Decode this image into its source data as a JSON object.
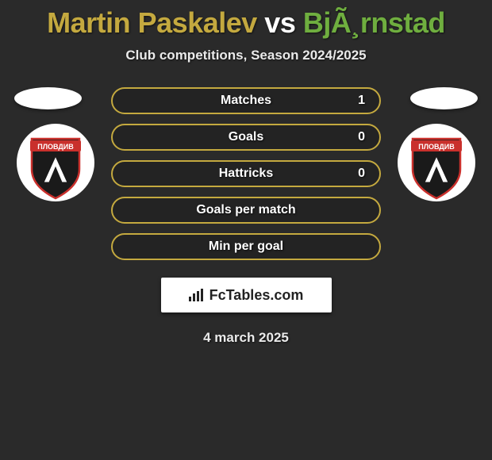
{
  "title": {
    "player1": "Martin Paskalev",
    "vs": " vs ",
    "player2": "BjÃ¸rnstad",
    "player1_color": "#c4a93f",
    "vs_color": "#ffffff",
    "player2_color": "#6fae3f"
  },
  "subtitle": "Club competitions, Season 2024/2025",
  "accent_color": "#c4a93f",
  "stats": [
    {
      "label": "Matches",
      "value": "1"
    },
    {
      "label": "Goals",
      "value": "0"
    },
    {
      "label": "Hattricks",
      "value": "0"
    },
    {
      "label": "Goals per match",
      "value": ""
    },
    {
      "label": "Min per goal",
      "value": ""
    }
  ],
  "branding_text": "FcTables.com",
  "date": "4 march 2025",
  "logo": {
    "bg": "#ffffff",
    "shield_outer": "#1a1a1a",
    "shield_border": "#c9302c",
    "banner_bg": "#c9302c",
    "banner_text": "ПЛОВДИВ",
    "letter": "Л",
    "letter_color": "#1a1a1a"
  }
}
